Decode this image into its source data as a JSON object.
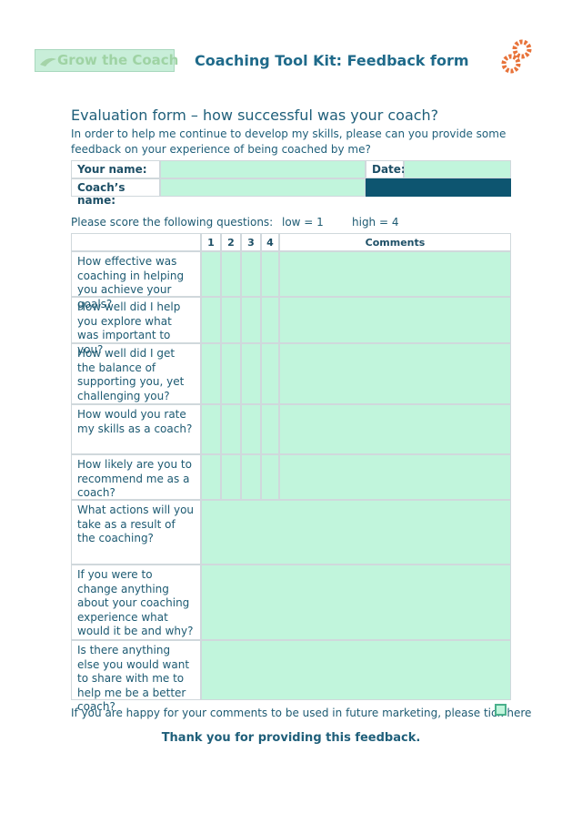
{
  "header": {
    "logo": "Grow the Coach",
    "title": "Coaching Tool Kit: Feedback form"
  },
  "heading": "Evaluation form – how successful was your coach?",
  "intro": "In order to help me continue to develop my skills, please can you provide some feedback on your experience of being coached by me?",
  "details": {
    "name_label": "Your name:",
    "date_label": "Date:",
    "coach_label": "Coach’s name:"
  },
  "score": {
    "instruction": "Please score the following questions:",
    "low": "low = 1",
    "high": "high = 4"
  },
  "table": {
    "header": [
      "1",
      "2",
      "3",
      "4",
      "Comments"
    ],
    "scored_questions": [
      "How effective was coaching in helping you achieve your goals?",
      "How well did I help you explore what was important to you?",
      "How well did I get the balance of supporting you, yet challenging you?",
      "How would you rate my skills as a coach?",
      "How likely are you to recommend me as a coach?"
    ],
    "open_questions": [
      "What actions will you take as a result of the coaching?",
      "If you were to change anything about your coaching experience what would it be and why?",
      "Is there anything else you would want to share with me to help me be a better coach?"
    ]
  },
  "consent": "If you are happy for your comments to be used in future marketing, please tick here",
  "thanks": "Thank you for providing this feedback."
}
